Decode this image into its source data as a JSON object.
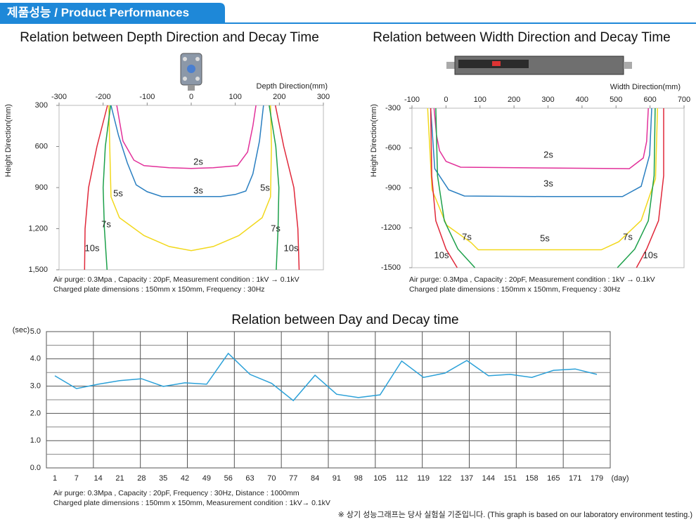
{
  "header": {
    "title": "제품성능 / Product Performances"
  },
  "chart_data": [
    {
      "type": "line",
      "title": "Relation between Depth Direction and Decay Time",
      "xlabel": "Depth Direction(mm)",
      "ylabel": "Height Direction(mm)",
      "xlim": [
        -300,
        300
      ],
      "xticks": [
        -300,
        -200,
        -100,
        0,
        100,
        200,
        300
      ],
      "ylim": [
        300,
        1500
      ],
      "y_reversed": true,
      "yticks": [
        300,
        600,
        900,
        {
          "value": 1200,
          "label": "1,200"
        },
        {
          "value": 1500,
          "label": "1,500"
        }
      ],
      "grid": false,
      "series": [
        {
          "name": "2s",
          "color": "#e2309a",
          "x": [
            -169,
            -155,
            -130,
            -107,
            -50,
            0,
            50,
            105,
            128,
            140,
            147
          ],
          "values": [
            300,
            560,
            700,
            740,
            755,
            760,
            755,
            740,
            640,
            450,
            300
          ]
        },
        {
          "name": "3s",
          "color": "#2a7fc1",
          "x": [
            -182,
            -165,
            -145,
            -125,
            -100,
            -67,
            0,
            67,
            100,
            124,
            140,
            155,
            164
          ],
          "values": [
            300,
            520,
            720,
            880,
            930,
            965,
            965,
            965,
            950,
            925,
            800,
            560,
            300
          ]
        },
        {
          "name": "5s",
          "color": "#f2d81c",
          "x": [
            -187,
            -185,
            -182,
            -163,
            -107,
            -50,
            0,
            50,
            108,
            161,
            180,
            182,
            180
          ],
          "values": [
            300,
            600,
            967,
            1120,
            1250,
            1330,
            1360,
            1330,
            1250,
            1120,
            967,
            600,
            300
          ]
        },
        {
          "name": "7s",
          "color": "#1ca04a",
          "x": [
            -183,
            -195,
            -200,
            -197,
            -191,
            null,
            177,
            192,
            199,
            197,
            193
          ],
          "values": [
            300,
            600,
            900,
            1200,
            1500,
            null,
            300,
            600,
            900,
            1200,
            1500
          ]
        },
        {
          "name": "10s",
          "color": "#e0283a",
          "x": [
            -190,
            -214,
            -233,
            -241,
            -242,
            null,
            191,
            210,
            233,
            242,
            245
          ],
          "values": [
            300,
            600,
            900,
            1200,
            1500,
            null,
            300,
            600,
            900,
            1200,
            1500
          ]
        }
      ],
      "notes": [
        "Air purge: 0.3Mpa , Capacity : 20pF,  Measurement condition : 1kV → 0.1kV",
        "Charged plate dimensions : 150mm x 150mm, Frequency : 30Hz"
      ]
    },
    {
      "type": "line",
      "title": "Relation between Width Direction and Decay Time",
      "xlabel": "Width Direction(mm)",
      "ylabel": "Height Direction(mm)",
      "xlim": [
        -100,
        700
      ],
      "xticks": [
        -100,
        0,
        100,
        200,
        300,
        400,
        500,
        600,
        700
      ],
      "ylim": [
        -1500,
        -300
      ],
      "y_reversed": false,
      "yticks": [
        -300,
        -600,
        -900,
        -1200,
        -1500
      ],
      "grid": false,
      "series": [
        {
          "name": "2s",
          "color": "#e2309a",
          "x": [
            -35,
            -28,
            -19,
            0,
            43,
            300,
            539,
            580,
            590,
            595
          ],
          "values": [
            -300,
            -500,
            -620,
            -700,
            -744,
            -750,
            -755,
            -675,
            -550,
            -300
          ]
        },
        {
          "name": "3s",
          "color": "#2a7fc1",
          "x": [
            -45,
            -33,
            8,
            54,
            300,
            519,
            574,
            599,
            605
          ],
          "values": [
            -300,
            -755,
            -914,
            -961,
            -965,
            -965,
            -888,
            -650,
            -300
          ]
        },
        {
          "name": "5s",
          "color": "#f2d81c",
          "x": [
            -54,
            -41,
            2,
            74,
            95,
            300,
            457,
            508,
            574,
            616,
            622
          ],
          "values": [
            -300,
            -914,
            -1180,
            -1312,
            -1365,
            -1365,
            -1365,
            -1305,
            -1145,
            -830,
            -300
          ]
        },
        {
          "name": "7s",
          "color": "#1ca04a",
          "x": [
            -30,
            -25,
            -5,
            35,
            85,
            null,
            615,
            612,
            595,
            555,
            504
          ],
          "values": [
            -300,
            -808,
            -1147,
            -1360,
            -1500,
            null,
            -300,
            -808,
            -1147,
            -1360,
            -1500
          ]
        },
        {
          "name": "10s",
          "color": "#e0283a",
          "x": [
            -45,
            -42,
            -30,
            0,
            33,
            null,
            640,
            640,
            625,
            590,
            560
          ],
          "values": [
            -300,
            -808,
            -1147,
            -1360,
            -1500,
            null,
            -300,
            -808,
            -1147,
            -1360,
            -1500
          ]
        }
      ],
      "notes": [
        "Air purge: 0.3Mpa , Capacity : 20pF,  Measurement condition : 1kV → 0.1kV",
        "Charged plate dimensions : 150mm x 150mm, Frequency : 30Hz"
      ]
    },
    {
      "type": "line",
      "title": "Relation between Day and Decay time",
      "x_unit": "(day)",
      "y_unit": "(sec)",
      "categories": [
        "1",
        "7",
        "14",
        "21",
        "28",
        "35",
        "42",
        "49",
        "56",
        "63",
        "70",
        "77",
        "84",
        "91",
        "98",
        "105",
        "112",
        "119",
        "122",
        "137",
        "144",
        "151",
        "158",
        "165",
        "171",
        "179"
      ],
      "ylim": [
        0,
        5
      ],
      "yticks": [
        {
          "value": 0,
          "label": "0.0"
        },
        {
          "value": 1,
          "label": "1.0"
        },
        {
          "value": 2,
          "label": "2.0"
        },
        {
          "value": 3,
          "label": "3.0"
        },
        {
          "value": 4,
          "label": "4.0"
        },
        {
          "value": 5,
          "label": "5.0"
        }
      ],
      "grid": true,
      "series": [
        {
          "name": "Decay time",
          "color": "#2aa0d8",
          "values": [
            3.38,
            2.91,
            3.07,
            3.2,
            3.27,
            2.99,
            3.12,
            3.07,
            4.2,
            3.43,
            3.1,
            2.47,
            3.4,
            2.7,
            2.58,
            2.68,
            3.92,
            3.32,
            3.48,
            3.94,
            3.38,
            3.43,
            3.32,
            3.58,
            3.63,
            3.43
          ]
        }
      ],
      "notes": [
        "Air purge: 0.3Mpa , Capacity : 20pF,  Frequency : 30Hz, Distance : 1000mm",
        "Charged plate dimensions : 150mm x 150mm, Measurement condition : 1kV→ 0.1kV"
      ]
    }
  ],
  "footnote": "※ 상기 성능그래프는 당사 실험실 기준입니다. (This graph is based on our laboratory environment testing.)"
}
